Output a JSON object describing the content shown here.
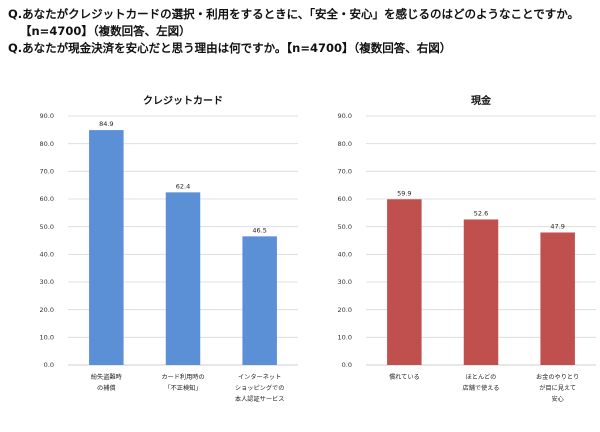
{
  "questions": {
    "line1": "Q.あなたがクレジットカードの選択・利用をするときに、「安全・安心」を感じるのはどのようなことですか。",
    "line2": "【n=4700】（複数回答、左図）",
    "line3": "Q.あなたが現金決済を安心だと思う理由は何ですか。【n=4700】（複数回答、右図）"
  },
  "chart_data": [
    {
      "type": "bar",
      "title": "クレジットカード",
      "categories": [
        [
          "紛失盗難時",
          "の補償"
        ],
        [
          "カード利用時の",
          "「不正検知」"
        ],
        [
          "インターネット",
          "ショッピングでの",
          "本人認証サービス"
        ]
      ],
      "values": [
        84.9,
        62.4,
        46.5
      ],
      "value_labels": [
        "84.9",
        "62.4",
        "46.5"
      ],
      "ylim": [
        0,
        90
      ],
      "yticks": [
        "0.0",
        "10.0",
        "20.0",
        "30.0",
        "40.0",
        "50.0",
        "60.0",
        "70.0",
        "80.0",
        "90.0"
      ],
      "bar_color": "#5b8fd6",
      "grid": true,
      "legend": "none"
    },
    {
      "type": "bar",
      "title": "現金",
      "categories": [
        [
          "慣れている"
        ],
        [
          "ほとんどの",
          "店舗で使える"
        ],
        [
          "お金のやりとり",
          "が目に見えて",
          "安心"
        ]
      ],
      "values": [
        59.9,
        52.6,
        47.9
      ],
      "value_labels": [
        "59.9",
        "52.6",
        "47.9"
      ],
      "ylim": [
        0,
        90
      ],
      "yticks": [
        "0.0",
        "10.0",
        "20.0",
        "30.0",
        "40.0",
        "50.0",
        "60.0",
        "70.0",
        "80.0",
        "90.0"
      ],
      "bar_color": "#c0504d",
      "grid": true,
      "legend": "none"
    }
  ]
}
